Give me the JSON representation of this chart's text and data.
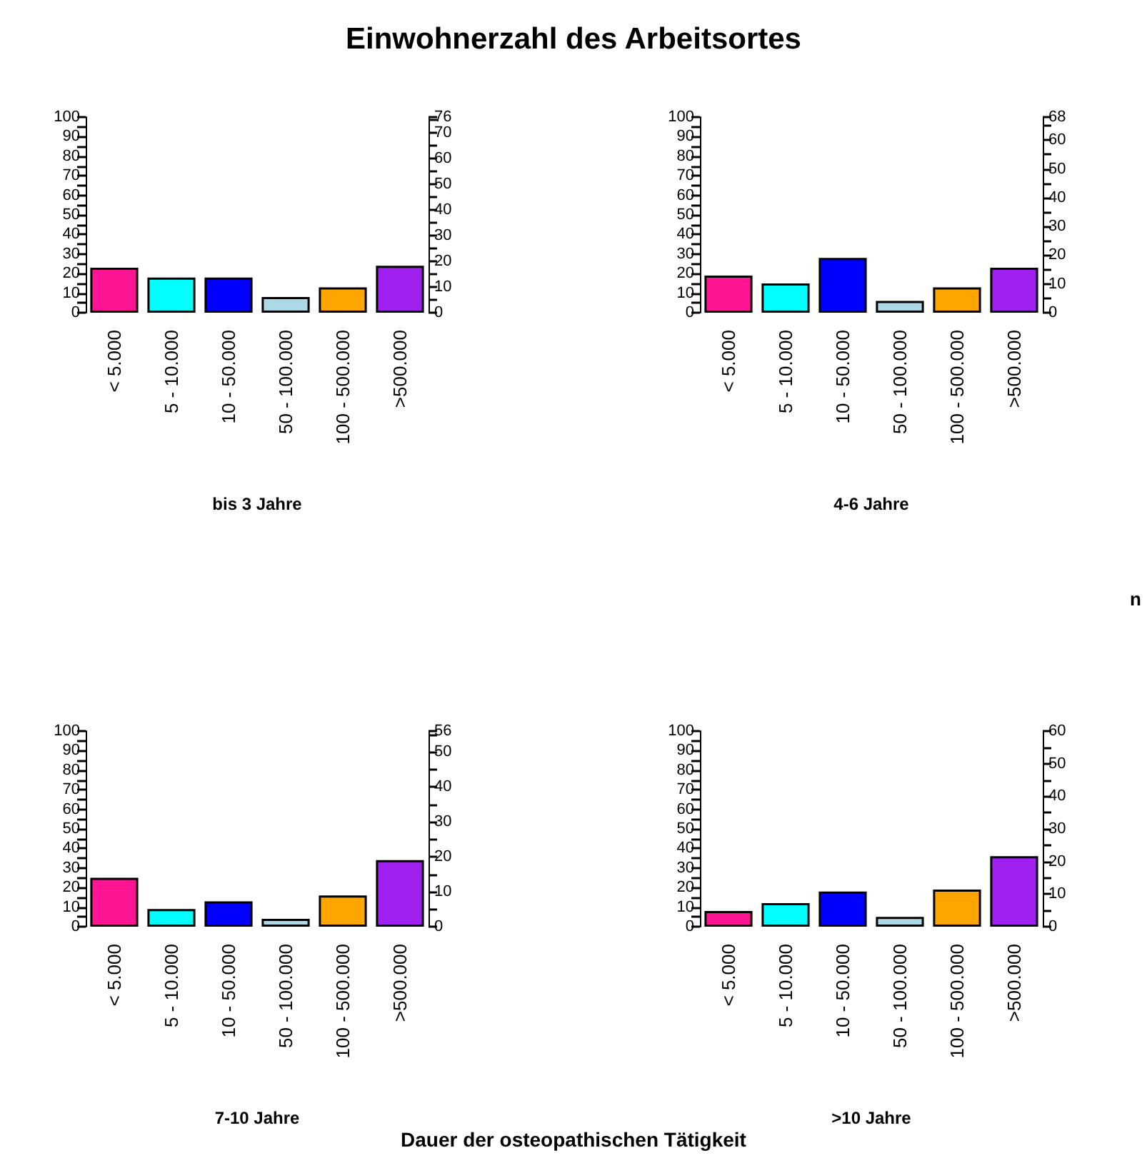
{
  "chart_data": [
    {
      "type": "bar",
      "title": "Einwohnerzahl des Arbeitsortes",
      "xlabel": "bis 3 Jahre",
      "categories": [
        "< 5.000",
        "5 - 10.000",
        "10 - 50.000",
        "50 - 100.000",
        "100 - 500.000",
        ">500.000"
      ],
      "values": [
        23,
        18,
        18,
        8,
        13,
        24
      ],
      "colors": [
        "#ff1493",
        "#00ffff",
        "#0000ff",
        "#add8e6",
        "#ffa500",
        "#a020f0"
      ],
      "ylim": [
        0,
        100
      ],
      "yticks": [
        0,
        {
          "value": 5,
          "label": null
        },
        10,
        {
          "value": 15,
          "label": null
        },
        20,
        {
          "value": 25,
          "label": null
        },
        30,
        {
          "value": 35,
          "label": null
        },
        40,
        {
          "value": 45,
          "label": null
        },
        50,
        {
          "value": 55,
          "label": null
        },
        60,
        {
          "value": 65,
          "label": null
        },
        70,
        {
          "value": 75,
          "label": null
        },
        80,
        {
          "value": 85,
          "label": null
        },
        90,
        {
          "value": 95,
          "label": null
        },
        100
      ],
      "y2lim": [
        0,
        76
      ],
      "y2ticks": [
        0,
        {
          "value": 5,
          "label": null
        },
        10,
        {
          "value": 15,
          "label": null
        },
        20,
        {
          "value": 25,
          "label": null
        },
        30,
        {
          "value": 35,
          "label": null
        },
        40,
        {
          "value": 45,
          "label": null
        },
        50,
        {
          "value": 55,
          "label": null
        },
        60,
        {
          "value": 65,
          "label": null
        },
        70,
        {
          "value": 75,
          "label": null
        },
        76
      ]
    },
    {
      "type": "bar",
      "xlabel": "4-6 Jahre",
      "y2label": "n",
      "categories": [
        "< 5.000",
        "5 - 10.000",
        "10 - 50.000",
        "50 - 100.000",
        "100 - 500.000",
        ">500.000"
      ],
      "values": [
        19,
        15,
        28,
        6,
        13,
        23
      ],
      "colors": [
        "#ff1493",
        "#00ffff",
        "#0000ff",
        "#add8e6",
        "#ffa500",
        "#a020f0"
      ],
      "ylim": [
        0,
        100
      ],
      "yticks": [
        0,
        {
          "value": 5,
          "label": null
        },
        10,
        {
          "value": 15,
          "label": null
        },
        20,
        {
          "value": 25,
          "label": null
        },
        30,
        {
          "value": 35,
          "label": null
        },
        40,
        {
          "value": 45,
          "label": null
        },
        50,
        {
          "value": 55,
          "label": null
        },
        60,
        {
          "value": 65,
          "label": null
        },
        70,
        {
          "value": 75,
          "label": null
        },
        80,
        {
          "value": 85,
          "label": null
        },
        90,
        {
          "value": 95,
          "label": null
        },
        100
      ],
      "y2lim": [
        0,
        68
      ],
      "y2ticks": [
        0,
        {
          "value": 5,
          "label": null
        },
        10,
        {
          "value": 15,
          "label": null
        },
        20,
        {
          "value": 25,
          "label": null
        },
        30,
        {
          "value": 35,
          "label": null
        },
        40,
        {
          "value": 45,
          "label": null
        },
        50,
        {
          "value": 55,
          "label": null
        },
        60,
        {
          "value": 65,
          "label": null
        },
        68
      ]
    },
    {
      "type": "bar",
      "xlabel": "7-10 Jahre",
      "categories": [
        "< 5.000",
        "5 - 10.000",
        "10 - 50.000",
        "50 - 100.000",
        "100 - 500.000",
        ">500.000"
      ],
      "values": [
        25,
        9,
        13,
        4,
        16,
        34
      ],
      "colors": [
        "#ff1493",
        "#00ffff",
        "#0000ff",
        "#add8e6",
        "#ffa500",
        "#a020f0"
      ],
      "ylim": [
        0,
        100
      ],
      "yticks": [
        0,
        {
          "value": 5,
          "label": null
        },
        10,
        {
          "value": 15,
          "label": null
        },
        20,
        {
          "value": 25,
          "label": null
        },
        30,
        {
          "value": 35,
          "label": null
        },
        40,
        {
          "value": 45,
          "label": null
        },
        50,
        {
          "value": 55,
          "label": null
        },
        60,
        {
          "value": 65,
          "label": null
        },
        70,
        {
          "value": 75,
          "label": null
        },
        80,
        {
          "value": 85,
          "label": null
        },
        90,
        {
          "value": 95,
          "label": null
        },
        100
      ],
      "y2lim": [
        0,
        56
      ],
      "y2ticks": [
        0,
        {
          "value": 5,
          "label": null
        },
        10,
        {
          "value": 15,
          "label": null
        },
        20,
        {
          "value": 25,
          "label": null
        },
        30,
        {
          "value": 35,
          "label": null
        },
        40,
        {
          "value": 45,
          "label": null
        },
        50,
        {
          "value": 55,
          "label": null
        },
        56
      ]
    },
    {
      "type": "bar",
      "xlabel": ">10 Jahre",
      "annotations": [
        "Dauer der osteopathischen Tätigkeit"
      ],
      "categories": [
        "< 5.000",
        "5 - 10.000",
        "10 - 50.000",
        "50 - 100.000",
        "100 - 500.000",
        ">500.000"
      ],
      "values": [
        8,
        12,
        18,
        5,
        19,
        36
      ],
      "colors": [
        "#ff1493",
        "#00ffff",
        "#0000ff",
        "#add8e6",
        "#ffa500",
        "#a020f0"
      ],
      "ylim": [
        0,
        100
      ],
      "yticks": [
        0,
        {
          "value": 5,
          "label": null
        },
        10,
        {
          "value": 15,
          "label": null
        },
        20,
        {
          "value": 25,
          "label": null
        },
        30,
        {
          "value": 35,
          "label": null
        },
        40,
        {
          "value": 45,
          "label": null
        },
        50,
        {
          "value": 55,
          "label": null
        },
        60,
        {
          "value": 65,
          "label": null
        },
        70,
        {
          "value": 75,
          "label": null
        },
        80,
        {
          "value": 85,
          "label": null
        },
        90,
        {
          "value": 95,
          "label": null
        },
        100
      ],
      "y2lim": [
        0,
        60
      ],
      "y2ticks": [
        0,
        {
          "value": 5,
          "label": null
        },
        10,
        {
          "value": 15,
          "label": null
        },
        20,
        {
          "value": 25,
          "label": null
        },
        30,
        {
          "value": 35,
          "label": null
        },
        40,
        {
          "value": 45,
          "label": null
        },
        50,
        {
          "value": 55,
          "label": null
        },
        60
      ]
    }
  ]
}
